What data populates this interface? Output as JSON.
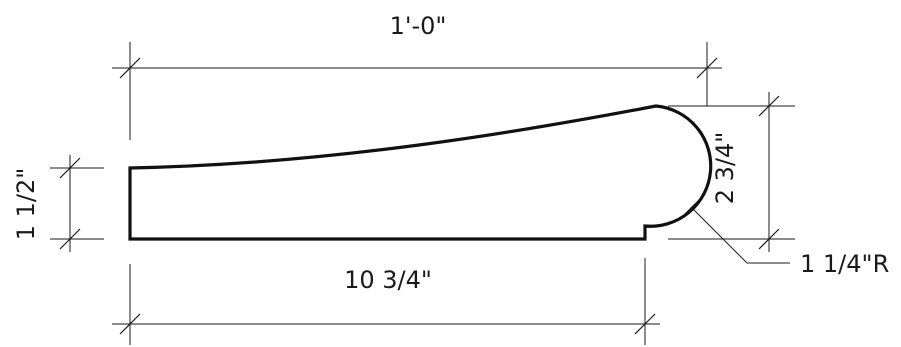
{
  "dimensions": {
    "overall_width": "1'-0\"",
    "base_width": "10 3/4\"",
    "left_height": "1 1/2\"",
    "right_height": "2 3/4\"",
    "radius": "1 1/4\"R"
  },
  "colors": {
    "line": "#1a1a1a",
    "background": "#ffffff"
  }
}
